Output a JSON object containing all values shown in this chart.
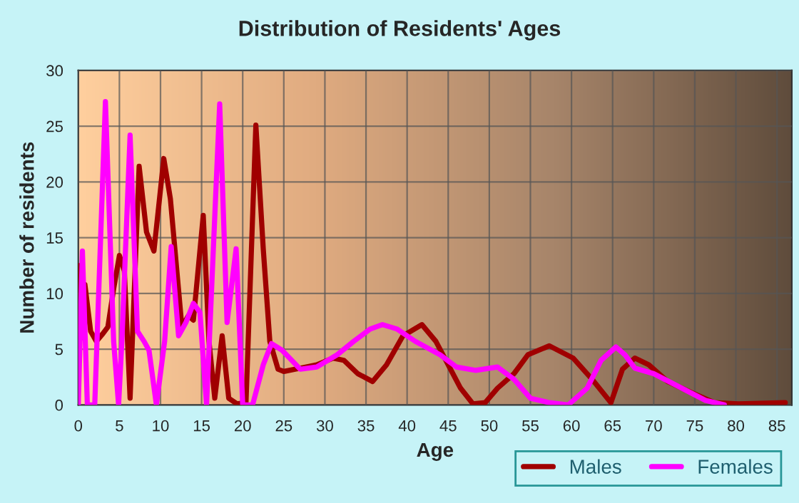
{
  "chart_data": {
    "type": "line",
    "title": "Distribution of Residents' Ages",
    "xlabel": "Age",
    "ylabel": "Number of residents",
    "xlim": [
      0,
      86.8
    ],
    "ylim": [
      0,
      30
    ],
    "xticks": [
      0,
      5,
      10,
      15,
      20,
      25,
      30,
      35,
      40,
      45,
      50,
      55,
      60,
      65,
      70,
      75,
      80,
      85
    ],
    "yticks": [
      0,
      5,
      10,
      15,
      20,
      25,
      30
    ],
    "grid": true,
    "legend": "bottom right",
    "line_style": "solid",
    "series": [
      {
        "name": "Males",
        "color": "#a00000",
        "x": [
          0,
          0.3,
          0.8,
          1.5,
          2.2,
          3,
          3.6,
          4.3,
          5,
          5.6,
          6.3,
          7.4,
          8.3,
          9.2,
          10.4,
          11.2,
          12.6,
          13.4,
          14,
          15.2,
          15.9,
          16.6,
          17.5,
          18.3,
          19.3,
          20.4,
          21.6,
          22.5,
          23.3,
          24.3,
          25,
          27,
          29,
          31,
          32.3,
          34,
          35.8,
          37.5,
          39.5,
          41.8,
          43.5,
          45,
          46.5,
          48,
          49.5,
          51,
          53,
          54.7,
          57.3,
          60.2,
          62.5,
          64.8,
          66.2,
          67.7,
          69.4,
          71.7,
          74.6,
          77.4,
          80.3,
          86
        ],
        "values": [
          12.5,
          6,
          10.8,
          6.6,
          5.7,
          6.4,
          7,
          10.4,
          13.4,
          12,
          0.6,
          21.4,
          15.5,
          13.8,
          22.1,
          18.5,
          7,
          8,
          7.6,
          17,
          5.7,
          0.6,
          6.2,
          0.6,
          0.1,
          0.2,
          25.1,
          14,
          5.7,
          3.2,
          3,
          3.3,
          3.6,
          4.2,
          4,
          2.8,
          2.1,
          3.6,
          6.2,
          7.2,
          5.7,
          3.6,
          1.5,
          0.1,
          0.2,
          1.5,
          2.8,
          4.5,
          5.3,
          4.2,
          2.3,
          0.2,
          3.2,
          4.2,
          3.6,
          2.1,
          1.1,
          0.2,
          0.1,
          0.2
        ]
      },
      {
        "name": "Females",
        "color": "#ff00ff",
        "x": [
          0,
          0.5,
          1.1,
          2,
          3.3,
          4.3,
          4.9,
          5.3,
          6.3,
          7.2,
          8,
          8.6,
          9.5,
          10.5,
          11.3,
          12.2,
          13.1,
          14,
          14.8,
          15.6,
          17.2,
          18.1,
          19.2,
          20,
          21.2,
          22.5,
          23.5,
          24.8,
          27,
          29,
          31.5,
          33.5,
          35.5,
          37,
          38.8,
          41,
          44,
          46,
          48.3,
          51,
          53,
          55,
          57.3,
          59.6,
          61.9,
          63.6,
          65.4,
          66.5,
          67.7,
          70,
          72.9,
          76.3,
          78.6
        ],
        "values": [
          0,
          13.8,
          0,
          0,
          27.2,
          5.7,
          0,
          5.7,
          24.2,
          6.6,
          5.7,
          4.9,
          0,
          5.7,
          14.2,
          6.2,
          7.4,
          9.1,
          8.3,
          0,
          27,
          7.4,
          14,
          0,
          0,
          3.6,
          5.5,
          4.9,
          3.2,
          3.4,
          4.5,
          5.7,
          6.8,
          7.2,
          6.8,
          5.7,
          4.5,
          3.4,
          3.1,
          3.4,
          2.3,
          0.6,
          0.2,
          0,
          1.5,
          4,
          5.2,
          4.5,
          3.3,
          2.8,
          1.7,
          0.4,
          0
        ]
      }
    ]
  }
}
